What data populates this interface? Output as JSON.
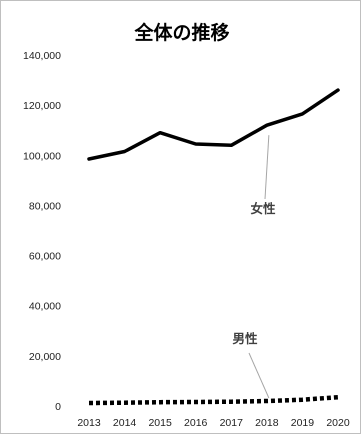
{
  "chart_data": {
    "type": "line",
    "title": "全体の推移",
    "xlabel": "",
    "ylabel": "",
    "categories": [
      "2013",
      "2014",
      "2015",
      "2016",
      "2017",
      "2018",
      "2019",
      "2020"
    ],
    "ylim": [
      0,
      140000
    ],
    "y_ticks": [
      "0",
      "20,000",
      "40,000",
      "60,000",
      "80,000",
      "100,000",
      "120,000",
      "140,000"
    ],
    "grid": false,
    "legend": "none",
    "series": [
      {
        "name": "女性",
        "values": [
          98500,
          101500,
          109000,
          104500,
          104000,
          112000,
          116500,
          126000
        ],
        "style": "solid",
        "color": "#000000"
      },
      {
        "name": "男性",
        "values": [
          1200,
          1300,
          1500,
          1600,
          1700,
          2000,
          2500,
          3500
        ],
        "style": "dotted",
        "color": "#000000"
      }
    ]
  }
}
